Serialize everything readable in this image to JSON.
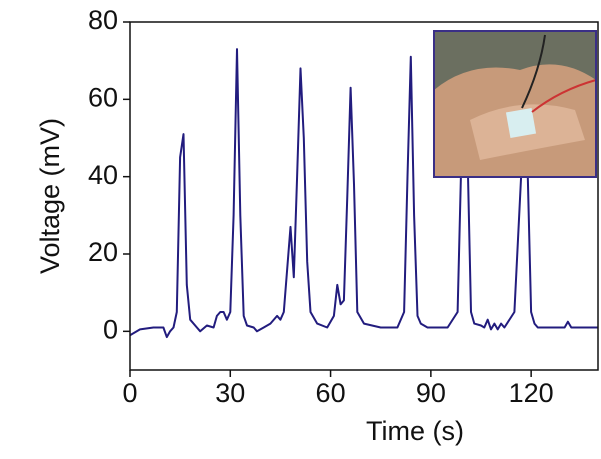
{
  "chart_data": {
    "type": "line",
    "xlabel": "Time (s)",
    "ylabel": "Voltage (mV)",
    "x": [
      0,
      3,
      7,
      10,
      11,
      12,
      13,
      14,
      15,
      16,
      17,
      18,
      20,
      21,
      23,
      25,
      26,
      27,
      28,
      29,
      30,
      31,
      32,
      33,
      34,
      35,
      37,
      38,
      40,
      42,
      44,
      45,
      46,
      48,
      49,
      50,
      51,
      52,
      53,
      54,
      56,
      59,
      61,
      62,
      63,
      64,
      65,
      66,
      67,
      68,
      70,
      75,
      80,
      82,
      83,
      84,
      85,
      86,
      87,
      89,
      92,
      95,
      98,
      99,
      100,
      101,
      102,
      103,
      105,
      106,
      107,
      108,
      109,
      110,
      111,
      112,
      115,
      117,
      118,
      119,
      120,
      121,
      122,
      125,
      128,
      130,
      131,
      132,
      135,
      140
    ],
    "values": [
      -1,
      0.5,
      1,
      1,
      -1.5,
      0,
      1,
      5,
      45,
      51,
      12,
      3,
      1,
      0,
      1.5,
      1,
      4,
      5,
      5,
      3,
      5,
      30,
      73,
      30,
      4,
      1.5,
      1,
      0,
      1,
      2,
      4,
      3,
      5,
      27,
      14,
      40,
      68,
      50,
      18,
      5,
      2,
      1,
      4,
      12,
      7,
      8,
      35,
      63,
      38,
      5,
      2,
      1,
      1,
      5,
      40,
      71,
      30,
      4,
      2,
      1,
      1,
      1,
      5,
      40,
      75,
      45,
      5,
      2,
      1.5,
      1,
      3,
      0.5,
      2,
      0.5,
      2,
      1,
      5,
      40,
      70,
      40,
      5,
      2,
      1,
      1,
      1,
      1,
      2.5,
      1,
      1,
      1
    ],
    "color": "#221c7e",
    "xlim": [
      0,
      140
    ],
    "xticks": [
      0,
      30,
      60,
      90,
      120
    ],
    "ylim": [
      -10,
      80
    ],
    "yticks": [
      0,
      20,
      40,
      60,
      80
    ]
  }
}
